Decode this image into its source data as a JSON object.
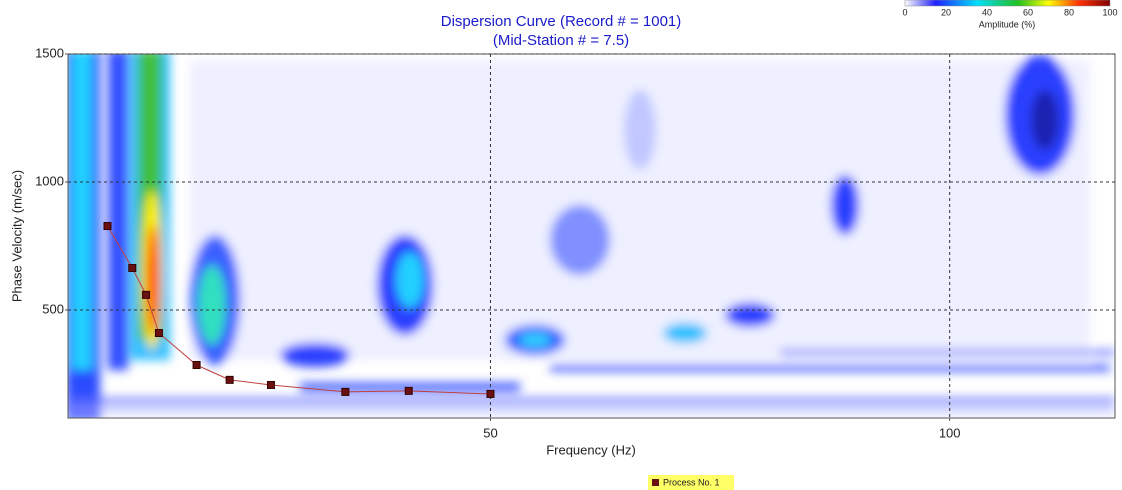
{
  "chart_data": {
    "type": "line",
    "title": "Dispersion Curve (Record # = 1001)",
    "subtitle": "(Mid-Station # = 7.5)",
    "x_label": "Frequency (Hz)",
    "y_label": "Phase Velocity (m/sec)",
    "x": [
      8.3,
      11.0,
      12.5,
      13.9,
      18.0,
      21.6,
      26.1,
      34.2,
      41.1,
      50.0
    ],
    "series": [
      {
        "name": "Process No. 1",
        "color": "#6b1010",
        "values": [
          828,
          664,
          559,
          410,
          285,
          227,
          207,
          180,
          184,
          172
        ]
      }
    ],
    "xlim": [
      4,
      118
    ],
    "xticks": [
      50,
      100
    ],
    "ylim": [
      78,
      1500
    ],
    "yticks": [
      500,
      1000,
      1500
    ],
    "grid": true,
    "colorbar": {
      "label": "Amplitude (%)",
      "ticks": [
        0,
        20,
        40,
        60,
        80,
        100
      ]
    }
  }
}
